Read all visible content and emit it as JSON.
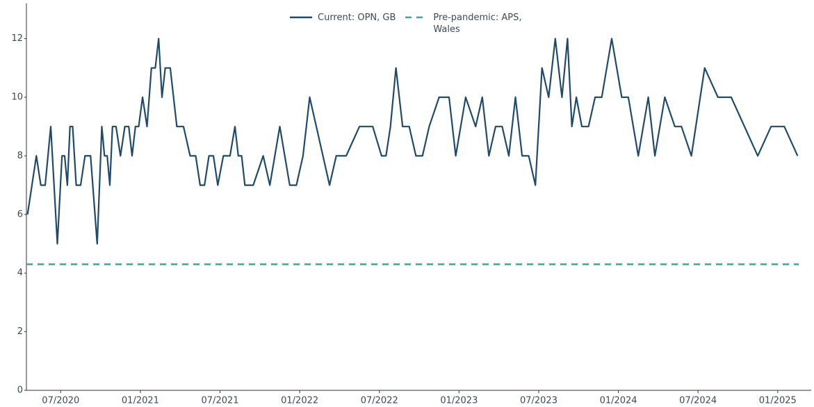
{
  "chart_data": {
    "type": "line",
    "x": [
      "2020-04",
      "2020-05",
      "2020-05",
      "2020-05",
      "2020-06",
      "2020-06",
      "2020-07",
      "2020-07",
      "2020-07",
      "2020-07",
      "2020-07",
      "2020-08",
      "2020-08",
      "2020-08",
      "2020-09",
      "2020-09",
      "2020-10",
      "2020-10",
      "2020-10",
      "2020-10",
      "2020-10",
      "2020-11",
      "2020-11",
      "2020-11",
      "2020-12",
      "2020-12",
      "2020-12",
      "2020-12",
      "2021-01",
      "2021-01",
      "2021-01",
      "2021-02",
      "2021-02",
      "2021-02",
      "2021-02",
      "2021-03",
      "2021-03",
      "2021-04",
      "2021-04",
      "2021-05",
      "2021-05",
      "2021-05",
      "2021-06",
      "2021-06",
      "2021-06",
      "2021-07",
      "2021-07",
      "2021-08",
      "2021-08",
      "2021-08",
      "2021-08",
      "2021-09",
      "2021-10",
      "2021-10",
      "2021-11",
      "2021-12",
      "2021-12",
      "2022-01",
      "2022-01",
      "2022-03",
      "2022-03",
      "2022-04",
      "2022-05",
      "2022-06",
      "2022-07",
      "2022-07",
      "2022-07",
      "2022-08",
      "2022-08",
      "2022-09",
      "2022-09",
      "2022-10",
      "2022-10",
      "2022-11",
      "2022-12",
      "2022-12",
      "2023-01",
      "2023-02",
      "2023-02",
      "2023-03",
      "2023-03",
      "2023-04",
      "2023-04",
      "2023-05",
      "2023-05",
      "2023-06",
      "2023-06",
      "2023-07",
      "2023-07",
      "2023-08",
      "2023-08",
      "2023-09",
      "2023-09",
      "2023-09",
      "2023-10",
      "2023-10",
      "2023-11",
      "2023-11",
      "2023-12",
      "2024-01",
      "2024-01",
      "2024-02",
      "2024-03",
      "2024-03",
      "2024-04",
      "2024-05",
      "2024-05",
      "2024-06",
      "2024-07",
      "2024-08",
      "2024-09",
      "2024-11",
      "2024-12",
      "2025-01",
      "2025-02"
    ],
    "series": [
      {
        "name": "Current: OPN, GB",
        "color": "#1f4a6b",
        "values": [
          6,
          8,
          7,
          7,
          9,
          5,
          8,
          8,
          7,
          9,
          9,
          7,
          7,
          8,
          8,
          5,
          9,
          8,
          8,
          7,
          9,
          9,
          8,
          9,
          9,
          8,
          9,
          9,
          10,
          9,
          11,
          11,
          12,
          10,
          11,
          11,
          9,
          9,
          8,
          8,
          7,
          7,
          8,
          8,
          7,
          8,
          8,
          9,
          8,
          8,
          7,
          7,
          8,
          7,
          9,
          7,
          7,
          8,
          10,
          7,
          8,
          8,
          9,
          9,
          8,
          8,
          9,
          11,
          9,
          9,
          8,
          8,
          9,
          10,
          10,
          8,
          10,
          9,
          10,
          8,
          9,
          9,
          8,
          10,
          8,
          8,
          7,
          11,
          10,
          12,
          10,
          12,
          9,
          10,
          9,
          9,
          10,
          10,
          12,
          10,
          10,
          8,
          10,
          8,
          10,
          9,
          9,
          8,
          11,
          10,
          10,
          8,
          9,
          9,
          8
        ]
      }
    ],
    "reference_lines": [
      {
        "name": "Pre-pandemic: APS, Wales",
        "color": "#3aa6a0",
        "value": 4.3
      }
    ],
    "xlim": [
      "2020-04",
      "2025-03"
    ],
    "xticks": [
      {
        "value": "2020-07",
        "label": "07/2020"
      },
      {
        "value": "2021-01",
        "label": "01/2021"
      },
      {
        "value": "2021-07",
        "label": "07/2021"
      },
      {
        "value": "2022-01",
        "label": "01/2022"
      },
      {
        "value": "2022-07",
        "label": "07/2022"
      },
      {
        "value": "2023-01",
        "label": "01/2023"
      },
      {
        "value": "2023-07",
        "label": "07/2023"
      },
      {
        "value": "2024-01",
        "label": "01/2024"
      },
      {
        "value": "2024-07",
        "label": "07/2024"
      },
      {
        "value": "2025-01",
        "label": "01/2025"
      }
    ],
    "ylim": [
      0,
      13.2
    ],
    "yticks": [
      0,
      2,
      4,
      6,
      8,
      10,
      12
    ],
    "grid": false
  }
}
